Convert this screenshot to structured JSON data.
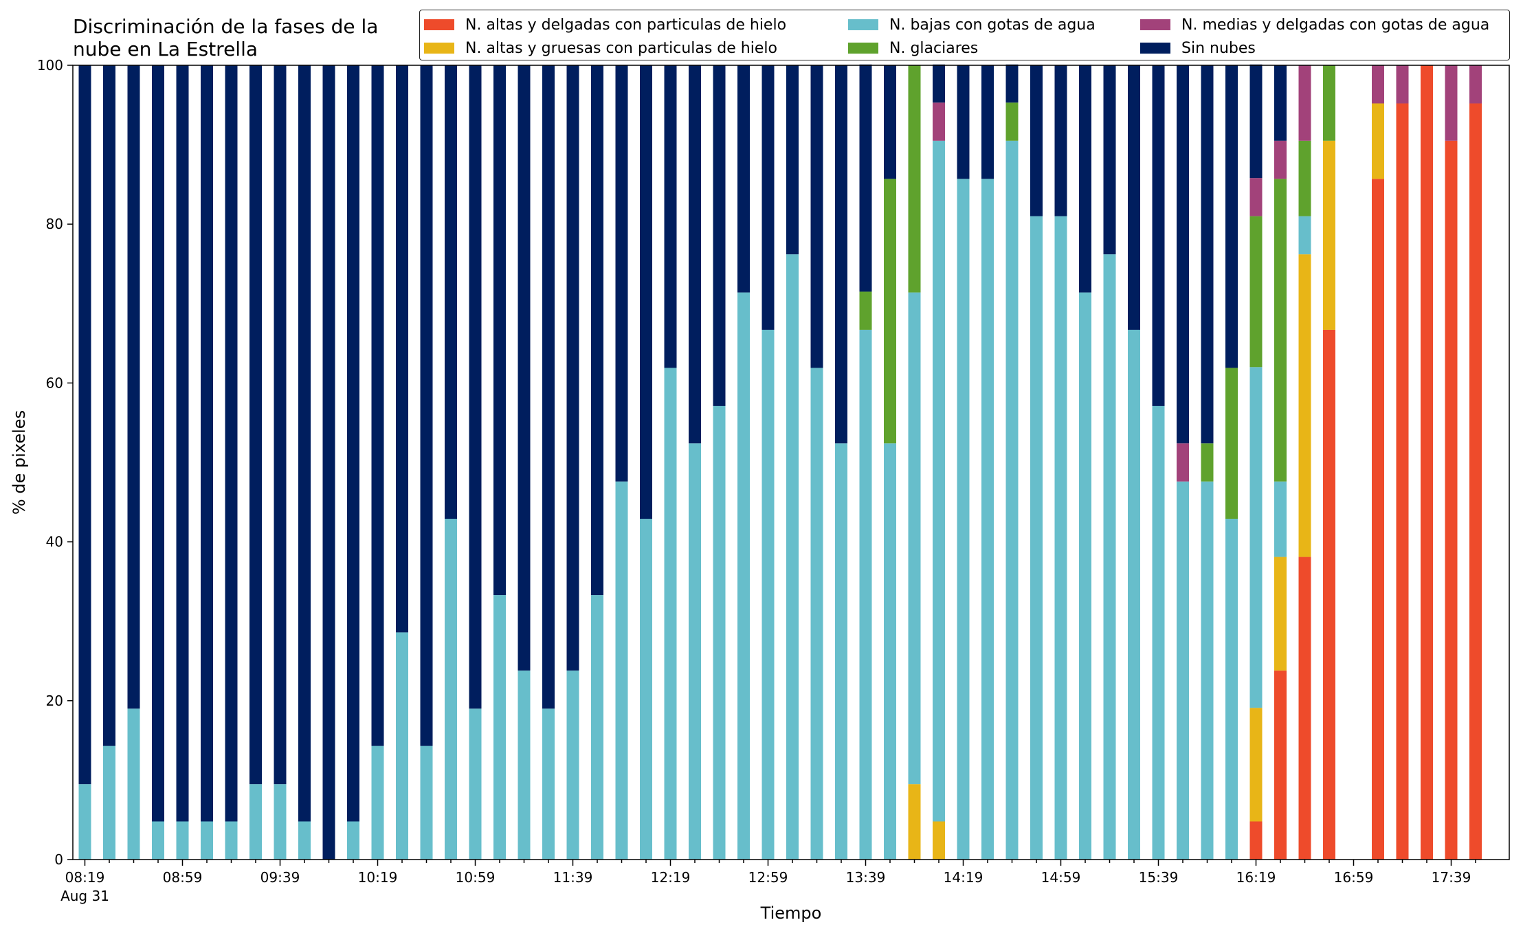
{
  "chart_data": {
    "type": "bar",
    "stacked": true,
    "title": "Discriminación de la fases de la nube en La Estrella",
    "title_lines": [
      "Discriminación de la fases de la",
      "nube en La Estrella"
    ],
    "xlabel": "Tiempo",
    "ylabel": "% de pixeles",
    "ylim": [
      0,
      100
    ],
    "yticks": [
      0,
      20,
      40,
      60,
      80,
      100
    ],
    "xtick_labels": [
      "08:19",
      "08:59",
      "09:39",
      "10:19",
      "10:59",
      "11:39",
      "12:19",
      "12:59",
      "13:39",
      "14:19",
      "14:59",
      "15:39",
      "16:19",
      "16:59",
      "17:39"
    ],
    "xtick_sublabel": "Aug 31",
    "grid": false,
    "legend_placement": "top",
    "categories": [
      "08:19",
      "08:29",
      "08:39",
      "08:49",
      "08:59",
      "09:09",
      "09:19",
      "09:29",
      "09:39",
      "09:49",
      "09:59",
      "10:09",
      "10:19",
      "10:29",
      "10:39",
      "10:49",
      "10:59",
      "11:09",
      "11:19",
      "11:29",
      "11:39",
      "11:49",
      "11:59",
      "12:09",
      "12:19",
      "12:29",
      "12:39",
      "12:49",
      "12:59",
      "13:09",
      "13:19",
      "13:29",
      "13:39",
      "13:49",
      "13:59",
      "14:09",
      "14:19",
      "14:29",
      "14:39",
      "14:49",
      "14:59",
      "15:09",
      "15:19",
      "15:29",
      "15:39",
      "15:49",
      "15:59",
      "16:09",
      "16:19",
      "16:29",
      "16:39",
      "16:49",
      "16:59",
      "17:09",
      "17:19",
      "17:29",
      "17:39",
      "17:49"
    ],
    "series": [
      {
        "name": "N. altas y delgadas con particulas de hielo",
        "color": "#EE4B2B",
        "values": [
          0,
          0,
          0,
          0,
          0,
          0,
          0,
          0,
          0,
          0,
          0,
          0,
          0,
          0,
          0,
          0,
          0,
          0,
          0,
          0,
          0,
          0,
          0,
          0,
          0,
          0,
          0,
          0,
          0,
          0,
          0,
          0,
          0,
          0,
          0,
          0,
          0,
          0,
          0,
          0,
          0,
          0,
          0,
          0,
          0,
          0,
          0,
          0,
          4.8,
          23.8,
          38.1,
          66.7,
          0,
          85.7,
          95.2,
          100,
          90.5,
          95.2
        ]
      },
      {
        "name": "N. altas y gruesas con particulas de hielo",
        "color": "#E8B517",
        "values": [
          0,
          0,
          0,
          0,
          0,
          0,
          0,
          0,
          0,
          0,
          0,
          0,
          0,
          0,
          0,
          0,
          0,
          0,
          0,
          0,
          0,
          0,
          0,
          0,
          0,
          0,
          0,
          0,
          0,
          0,
          0,
          0,
          0,
          0,
          9.5,
          4.8,
          0,
          0,
          0,
          0,
          0,
          0,
          0,
          0,
          0,
          0,
          0,
          0,
          14.3,
          14.3,
          38.1,
          23.8,
          0,
          9.5,
          0,
          0,
          0,
          0
        ]
      },
      {
        "name": "N. bajas con gotas de agua",
        "color": "#67BECB",
        "values": [
          9.5,
          14.3,
          19,
          4.8,
          4.8,
          4.8,
          4.8,
          9.5,
          9.5,
          4.8,
          0,
          4.8,
          14.3,
          28.6,
          14.3,
          42.9,
          19,
          33.3,
          23.8,
          19,
          23.8,
          33.3,
          47.6,
          42.9,
          61.9,
          52.4,
          57.1,
          71.4,
          66.7,
          76.2,
          61.9,
          52.4,
          66.7,
          52.4,
          61.9,
          85.7,
          85.7,
          85.7,
          90.5,
          81,
          81,
          71.4,
          76.2,
          66.7,
          57.1,
          47.6,
          47.6,
          42.9,
          42.9,
          9.5,
          4.8,
          0,
          0,
          0,
          0,
          0,
          0,
          0
        ]
      },
      {
        "name": "N. glaciares",
        "color": "#5FA22D",
        "values": [
          0,
          0,
          0,
          0,
          0,
          0,
          0,
          0,
          0,
          0,
          0,
          0,
          0,
          0,
          0,
          0,
          0,
          0,
          0,
          0,
          0,
          0,
          0,
          0,
          0,
          0,
          0,
          0,
          0,
          0,
          0,
          0,
          4.8,
          33.3,
          28.6,
          0,
          0,
          0,
          4.8,
          0,
          0,
          0,
          0,
          0,
          0,
          0,
          4.8,
          19,
          19,
          38.1,
          9.5,
          9.5,
          0,
          0,
          0,
          0,
          0,
          0
        ]
      },
      {
        "name": "N. medias y delgadas con gotas de agua",
        "color": "#A2427A",
        "values": [
          0,
          0,
          0,
          0,
          0,
          0,
          0,
          0,
          0,
          0,
          0,
          0,
          0,
          0,
          0,
          0,
          0,
          0,
          0,
          0,
          0,
          0,
          0,
          0,
          0,
          0,
          0,
          0,
          0,
          0,
          0,
          0,
          0,
          0,
          0,
          4.8,
          0,
          0,
          0,
          0,
          0,
          0,
          0,
          0,
          0,
          4.8,
          0,
          0,
          4.8,
          4.8,
          9.5,
          0,
          0,
          4.8,
          4.8,
          0,
          9.5,
          4.8
        ]
      },
      {
        "name": "Sin nubes",
        "color": "#001E5E",
        "values": [
          90.5,
          85.7,
          81,
          95.2,
          95.2,
          95.2,
          95.2,
          90.5,
          90.5,
          95.2,
          100,
          95.2,
          85.7,
          71.4,
          85.7,
          57.1,
          81,
          66.7,
          76.2,
          81,
          76.2,
          66.7,
          52.4,
          57.1,
          38.1,
          47.6,
          42.9,
          28.6,
          33.3,
          23.8,
          38.1,
          47.6,
          28.6,
          14.3,
          0,
          4.8,
          14.3,
          14.3,
          4.8,
          19,
          19,
          28.6,
          23.8,
          33.3,
          42.9,
          47.6,
          47.6,
          38.1,
          14.3,
          9.5,
          0,
          0,
          0,
          0,
          0,
          0,
          0,
          0
        ]
      }
    ]
  }
}
